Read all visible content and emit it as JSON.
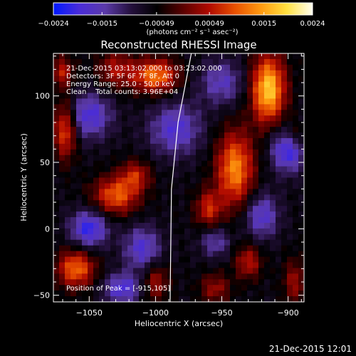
{
  "chart_data": {
    "type": "heatmap",
    "title": "Reconstructed RHESSI Image",
    "xlabel": "Heliocentric X (arcsec)",
    "ylabel": "Heliocentric Y (arcsec)",
    "xlim": [
      -1077,
      -888
    ],
    "ylim": [
      -55,
      132
    ],
    "x_ticks": [
      -1050,
      -1000,
      -950,
      -900
    ],
    "y_ticks": [
      -50,
      0,
      50,
      100
    ],
    "x_tick_labels": [
      "−1050",
      "−1000",
      "−950",
      "−900"
    ],
    "y_tick_labels": [
      "−50",
      "0",
      "50",
      "100"
    ],
    "colorbar": {
      "min": -0.0024,
      "max": 0.0024,
      "tick_values": [
        -0.0024,
        -0.0015,
        -0.00049,
        0.00049,
        0.0015,
        0.0024
      ],
      "tick_labels": [
        "−0.0024",
        "−0.0015",
        "−0.00049",
        "0.00049",
        "0.0015",
        "0.0024"
      ],
      "units_label": "(photons cm⁻² s⁻¹ asec⁻²)",
      "colormap": [
        "#0018ff",
        "#4a2cd8",
        "#5b3aa8",
        "#24103c",
        "#000000",
        "#5a0000",
        "#b00a00",
        "#e85000",
        "#ff9a10",
        "#ffe040",
        "#fffff0"
      ]
    },
    "annotations": [
      "21-Dec-2015 03:13:02.000 to 03:23:02.000",
      "Detectors: 3F 5F 6F 7F 8F, Att 0",
      "Energy Range: 25.0 - 50.0 keV",
      "Clean    Total counts: 3.96E+04"
    ],
    "peak_label": "Position of Peak = [-915,105]",
    "peak": {
      "x": -915,
      "y": 105
    },
    "limb_line": [
      [
        -973,
        132
      ],
      [
        -983,
        80
      ],
      [
        -988,
        30
      ],
      [
        -989,
        -55
      ]
    ],
    "sources": [
      {
        "x": -915,
        "y": 105,
        "sx": 9,
        "sy": 18,
        "amp": 0.0024
      },
      {
        "x": -940,
        "y": 45,
        "sx": 10,
        "sy": 20,
        "amp": 0.0019
      },
      {
        "x": -960,
        "y": 15,
        "sx": 7,
        "sy": 10,
        "amp": 0.0012
      },
      {
        "x": -1030,
        "y": 25,
        "sx": 12,
        "sy": 10,
        "amp": 0.0016
      },
      {
        "x": -1015,
        "y": 40,
        "sx": 8,
        "sy": 8,
        "amp": 0.0011
      },
      {
        "x": -1000,
        "y": 115,
        "sx": 12,
        "sy": 9,
        "amp": 0.0018
      },
      {
        "x": -1030,
        "y": 120,
        "sx": 10,
        "sy": 10,
        "amp": 0.001
      },
      {
        "x": -1068,
        "y": 75,
        "sx": 6,
        "sy": 15,
        "amp": 0.0016
      },
      {
        "x": -1070,
        "y": 118,
        "sx": 6,
        "sy": 8,
        "amp": 0.0011
      },
      {
        "x": -1060,
        "y": -30,
        "sx": 10,
        "sy": 10,
        "amp": 0.0017
      },
      {
        "x": -1000,
        "y": -40,
        "sx": 7,
        "sy": 10,
        "amp": 0.001
      },
      {
        "x": -955,
        "y": -45,
        "sx": 8,
        "sy": 8,
        "amp": 0.0009
      },
      {
        "x": -930,
        "y": -25,
        "sx": 7,
        "sy": 9,
        "amp": 0.0011
      },
      {
        "x": -895,
        "y": -40,
        "sx": 6,
        "sy": 12,
        "amp": 0.0009
      },
      {
        "x": -895,
        "y": 70,
        "sx": 6,
        "sy": 8,
        "amp": 0.0008
      },
      {
        "x": -1050,
        "y": 85,
        "sx": 12,
        "sy": 12,
        "amp": -0.0013
      },
      {
        "x": -1050,
        "y": 0,
        "sx": 10,
        "sy": 10,
        "amp": -0.0015
      },
      {
        "x": -985,
        "y": 75,
        "sx": 14,
        "sy": 14,
        "amp": -0.0012
      },
      {
        "x": -1010,
        "y": -15,
        "sx": 10,
        "sy": 12,
        "amp": -0.0012
      },
      {
        "x": -1025,
        "y": -45,
        "sx": 10,
        "sy": 8,
        "amp": -0.0013
      },
      {
        "x": -900,
        "y": 60,
        "sx": 9,
        "sy": 12,
        "amp": -0.0016
      },
      {
        "x": -920,
        "y": 10,
        "sx": 9,
        "sy": 12,
        "amp": -0.0012
      },
      {
        "x": -950,
        "y": 110,
        "sx": 12,
        "sy": 12,
        "amp": -0.001
      },
      {
        "x": -955,
        "y": -10,
        "sx": 8,
        "sy": 8,
        "amp": -0.0009
      }
    ]
  },
  "footer": {
    "timestamp": "21-Dec-2015 12:01"
  }
}
